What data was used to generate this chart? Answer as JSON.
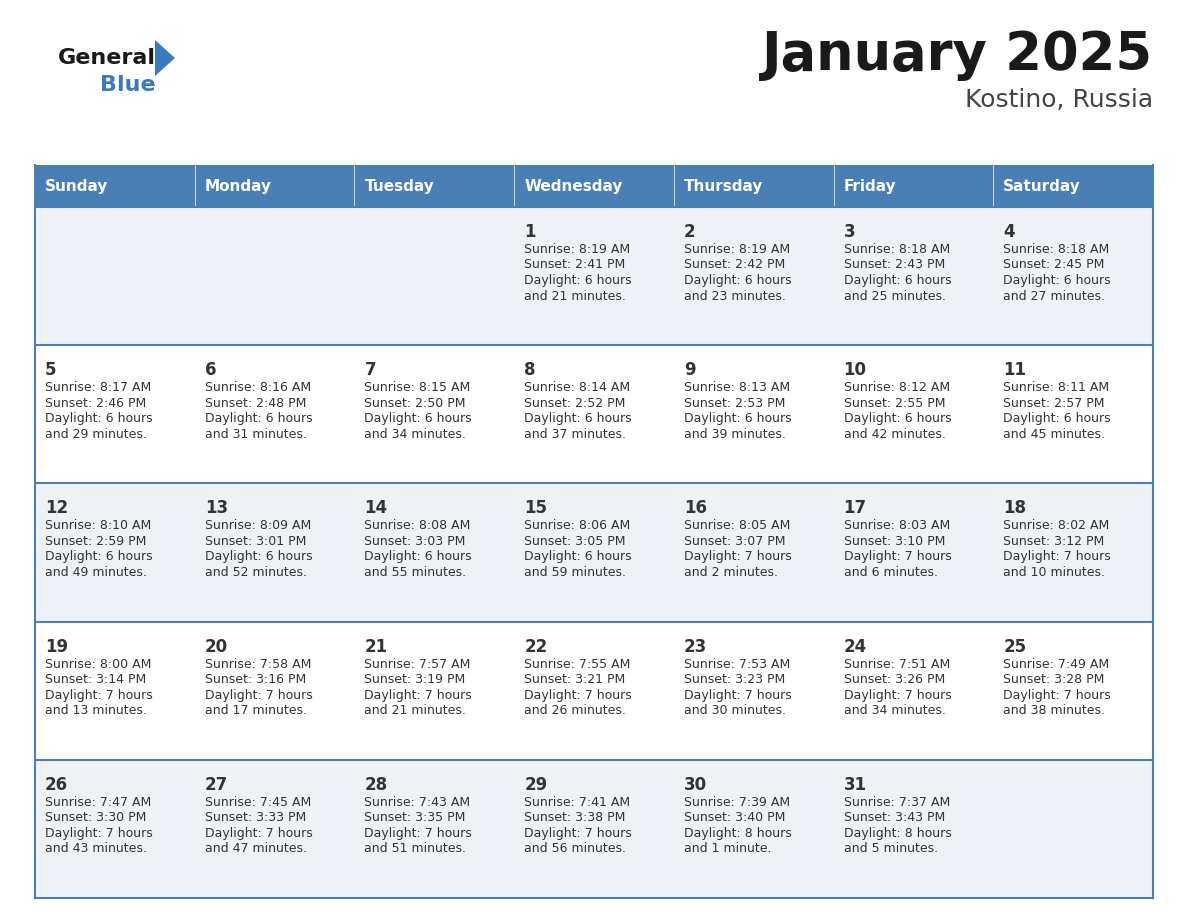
{
  "title": "January 2025",
  "subtitle": "Kostino, Russia",
  "days_of_week": [
    "Sunday",
    "Monday",
    "Tuesday",
    "Wednesday",
    "Thursday",
    "Friday",
    "Saturday"
  ],
  "header_bg": "#4a7fb5",
  "header_text": "#ffffff",
  "row_bg_odd": "#eef2f7",
  "row_bg_even": "#ffffff",
  "border_color": "#4a7fb5",
  "day_num_color": "#333333",
  "cell_text_color": "#333333",
  "title_color": "#1a1a1a",
  "subtitle_color": "#444444",
  "general_color": "#1a1a1a",
  "blue_color": "#3a7abf",
  "calendar_data": [
    [
      null,
      null,
      null,
      {
        "day": 1,
        "sunrise": "8:19 AM",
        "sunset": "2:41 PM",
        "daylight_l1": "Daylight: 6 hours",
        "daylight_l2": "and 21 minutes."
      },
      {
        "day": 2,
        "sunrise": "8:19 AM",
        "sunset": "2:42 PM",
        "daylight_l1": "Daylight: 6 hours",
        "daylight_l2": "and 23 minutes."
      },
      {
        "day": 3,
        "sunrise": "8:18 AM",
        "sunset": "2:43 PM",
        "daylight_l1": "Daylight: 6 hours",
        "daylight_l2": "and 25 minutes."
      },
      {
        "day": 4,
        "sunrise": "8:18 AM",
        "sunset": "2:45 PM",
        "daylight_l1": "Daylight: 6 hours",
        "daylight_l2": "and 27 minutes."
      }
    ],
    [
      {
        "day": 5,
        "sunrise": "8:17 AM",
        "sunset": "2:46 PM",
        "daylight_l1": "Daylight: 6 hours",
        "daylight_l2": "and 29 minutes."
      },
      {
        "day": 6,
        "sunrise": "8:16 AM",
        "sunset": "2:48 PM",
        "daylight_l1": "Daylight: 6 hours",
        "daylight_l2": "and 31 minutes."
      },
      {
        "day": 7,
        "sunrise": "8:15 AM",
        "sunset": "2:50 PM",
        "daylight_l1": "Daylight: 6 hours",
        "daylight_l2": "and 34 minutes."
      },
      {
        "day": 8,
        "sunrise": "8:14 AM",
        "sunset": "2:52 PM",
        "daylight_l1": "Daylight: 6 hours",
        "daylight_l2": "and 37 minutes."
      },
      {
        "day": 9,
        "sunrise": "8:13 AM",
        "sunset": "2:53 PM",
        "daylight_l1": "Daylight: 6 hours",
        "daylight_l2": "and 39 minutes."
      },
      {
        "day": 10,
        "sunrise": "8:12 AM",
        "sunset": "2:55 PM",
        "daylight_l1": "Daylight: 6 hours",
        "daylight_l2": "and 42 minutes."
      },
      {
        "day": 11,
        "sunrise": "8:11 AM",
        "sunset": "2:57 PM",
        "daylight_l1": "Daylight: 6 hours",
        "daylight_l2": "and 45 minutes."
      }
    ],
    [
      {
        "day": 12,
        "sunrise": "8:10 AM",
        "sunset": "2:59 PM",
        "daylight_l1": "Daylight: 6 hours",
        "daylight_l2": "and 49 minutes."
      },
      {
        "day": 13,
        "sunrise": "8:09 AM",
        "sunset": "3:01 PM",
        "daylight_l1": "Daylight: 6 hours",
        "daylight_l2": "and 52 minutes."
      },
      {
        "day": 14,
        "sunrise": "8:08 AM",
        "sunset": "3:03 PM",
        "daylight_l1": "Daylight: 6 hours",
        "daylight_l2": "and 55 minutes."
      },
      {
        "day": 15,
        "sunrise": "8:06 AM",
        "sunset": "3:05 PM",
        "daylight_l1": "Daylight: 6 hours",
        "daylight_l2": "and 59 minutes."
      },
      {
        "day": 16,
        "sunrise": "8:05 AM",
        "sunset": "3:07 PM",
        "daylight_l1": "Daylight: 7 hours",
        "daylight_l2": "and 2 minutes."
      },
      {
        "day": 17,
        "sunrise": "8:03 AM",
        "sunset": "3:10 PM",
        "daylight_l1": "Daylight: 7 hours",
        "daylight_l2": "and 6 minutes."
      },
      {
        "day": 18,
        "sunrise": "8:02 AM",
        "sunset": "3:12 PM",
        "daylight_l1": "Daylight: 7 hours",
        "daylight_l2": "and 10 minutes."
      }
    ],
    [
      {
        "day": 19,
        "sunrise": "8:00 AM",
        "sunset": "3:14 PM",
        "daylight_l1": "Daylight: 7 hours",
        "daylight_l2": "and 13 minutes."
      },
      {
        "day": 20,
        "sunrise": "7:58 AM",
        "sunset": "3:16 PM",
        "daylight_l1": "Daylight: 7 hours",
        "daylight_l2": "and 17 minutes."
      },
      {
        "day": 21,
        "sunrise": "7:57 AM",
        "sunset": "3:19 PM",
        "daylight_l1": "Daylight: 7 hours",
        "daylight_l2": "and 21 minutes."
      },
      {
        "day": 22,
        "sunrise": "7:55 AM",
        "sunset": "3:21 PM",
        "daylight_l1": "Daylight: 7 hours",
        "daylight_l2": "and 26 minutes."
      },
      {
        "day": 23,
        "sunrise": "7:53 AM",
        "sunset": "3:23 PM",
        "daylight_l1": "Daylight: 7 hours",
        "daylight_l2": "and 30 minutes."
      },
      {
        "day": 24,
        "sunrise": "7:51 AM",
        "sunset": "3:26 PM",
        "daylight_l1": "Daylight: 7 hours",
        "daylight_l2": "and 34 minutes."
      },
      {
        "day": 25,
        "sunrise": "7:49 AM",
        "sunset": "3:28 PM",
        "daylight_l1": "Daylight: 7 hours",
        "daylight_l2": "and 38 minutes."
      }
    ],
    [
      {
        "day": 26,
        "sunrise": "7:47 AM",
        "sunset": "3:30 PM",
        "daylight_l1": "Daylight: 7 hours",
        "daylight_l2": "and 43 minutes."
      },
      {
        "day": 27,
        "sunrise": "7:45 AM",
        "sunset": "3:33 PM",
        "daylight_l1": "Daylight: 7 hours",
        "daylight_l2": "and 47 minutes."
      },
      {
        "day": 28,
        "sunrise": "7:43 AM",
        "sunset": "3:35 PM",
        "daylight_l1": "Daylight: 7 hours",
        "daylight_l2": "and 51 minutes."
      },
      {
        "day": 29,
        "sunrise": "7:41 AM",
        "sunset": "3:38 PM",
        "daylight_l1": "Daylight: 7 hours",
        "daylight_l2": "and 56 minutes."
      },
      {
        "day": 30,
        "sunrise": "7:39 AM",
        "sunset": "3:40 PM",
        "daylight_l1": "Daylight: 8 hours",
        "daylight_l2": "and 1 minute."
      },
      {
        "day": 31,
        "sunrise": "7:37 AM",
        "sunset": "3:43 PM",
        "daylight_l1": "Daylight: 8 hours",
        "daylight_l2": "and 5 minutes."
      },
      null
    ]
  ],
  "figsize": [
    11.88,
    9.18
  ],
  "dpi": 100
}
